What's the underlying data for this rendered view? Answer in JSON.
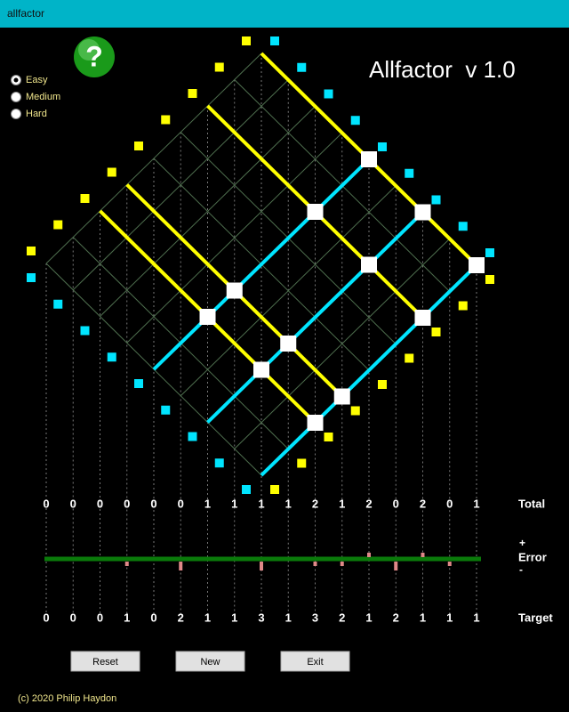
{
  "window": {
    "title": "allfactor"
  },
  "difficulty": {
    "options": [
      "Easy",
      "Medium",
      "Hard"
    ]
  },
  "help_icon": "?",
  "title": "Allfactor  v 1.0",
  "totals": {
    "label": "Total",
    "values": [
      0,
      0,
      0,
      0,
      0,
      0,
      1,
      1,
      1,
      1,
      2,
      1,
      2,
      0,
      2,
      0,
      1
    ]
  },
  "error": {
    "plus": "+",
    "label": "Error",
    "minus": "-"
  },
  "targets": {
    "label": "Target",
    "values": [
      0,
      0,
      0,
      1,
      0,
      2,
      1,
      1,
      3,
      1,
      3,
      2,
      1,
      2,
      1,
      1,
      1
    ]
  },
  "buttons": [
    "Reset",
    "New",
    "Exit"
  ],
  "footer": "(c) 2020 Philip Haydon"
}
